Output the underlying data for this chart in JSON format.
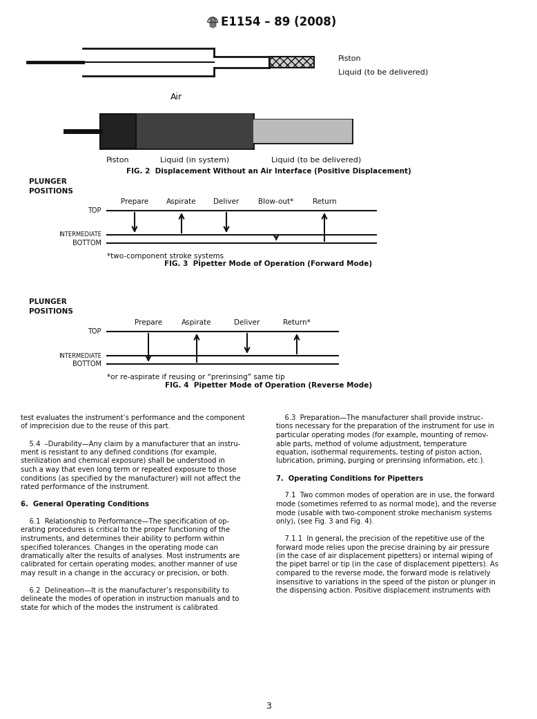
{
  "title": "E1154 – 89 (2008)",
  "bg_color": "#ffffff",
  "fig_width": 7.78,
  "fig_height": 10.41,
  "page_number": "3",
  "fig2_caption": "FIG. 2  Displacement Without an Air Interface (Positive Displacement)",
  "fig3_caption": "FIG. 3  Pipetter Mode of Operation (Forward Mode)",
  "fig4_caption": "FIG. 4  Pipetter Mode of Operation (Reverse Mode)",
  "fig3_labels": [
    "Prepare",
    "Aspirate",
    "Deliver",
    "Blow-out*",
    "Return"
  ],
  "fig3_note": "*two-component stroke systems",
  "fig4_labels": [
    "Prepare",
    "Aspirate",
    "Deliver",
    "Return*"
  ],
  "fig4_note": "*or re-aspirate if reusing or “prerinsing” same tip",
  "body_left_line1": "test evaluates the instrument’s performance and the component",
  "body_left_line2": "of imprecision due to the reuse of this part.",
  "body_left_line3": "",
  "body_left_line4": "    5.4  ",
  "body_left_line4b": "Durability",
  "body_left_line4c": "—Any claim by a manufacturer that an instru-",
  "body_left_line5": "ment is resistant to any defined conditions (for example,",
  "body_left_line6": "sterilization and chemical exposure) shall be understood in",
  "body_left_line7": "such a way that even long term or repeated exposure to those",
  "body_left_line8": "conditions (as specified by the manufacturer) will not affect the",
  "body_left_line9": "rated performance of the instrument.",
  "body_right_line1": "    6.3  ",
  "body_right_line1b": "Preparation",
  "body_right_line1c": "—The manufacturer shall provide instruc-",
  "body_right_line2": "tions necessary for the preparation of the instrument for use in",
  "body_right_line3": "particular operating modes (for example, mounting of remov-",
  "body_right_line4": "able parts, method of volume adjustment, temperature",
  "body_right_line5": "equation, isothermal requirements, testing of piston action,",
  "body_right_line6": "lubrication, priming, purging or prerinsing information, etc.).",
  "fig1_piston_label": "Piston",
  "fig1_liquid_label": "Liquid (to be delivered)",
  "fig1_air_label": "Air",
  "fig2_piston_label": "Piston",
  "fig2_liq_sys_label": "Liquid (in system)",
  "fig2_liq_del_label": "Liquid (to be delivered)",
  "sec6_heading": "6.  General Operating Conditions",
  "sec61_text": [
    "    6.1  Relationship to Performance—The specification of op-",
    "erating procedures is critical to the proper functioning of the",
    "instruments, and determines their ability to perform within",
    "specified tolerances. Changes in the operating mode can",
    "dramatically alter the results of analyses. Most instruments are",
    "calibrated for certain operating modes; another manner of use",
    "may result in a change in the accuracy or precision, or both."
  ],
  "sec62_text": [
    "    6.2  Delineation—It is the manufacturer’s responsibility to",
    "delineate the modes of operation in instruction manuals and to",
    "state for which of the modes the instrument is calibrated."
  ],
  "sec7_heading": "7.  Operating Conditions for Pipetters",
  "sec71_text": [
    "    7.1  Two common modes of operation are in use, the forward",
    "mode (sometimes referred to as normal mode), and the reverse",
    "mode (usable with two-component stroke mechanism systems",
    "only), (see Fig. 3 and Fig. 4)."
  ],
  "sec711_text": [
    "    7.1.1  In general, the precision of the repetitive use of the",
    "forward mode relies upon the precise draining by air pressure",
    "(in the case of air displacement pipetters) or internal wiping of",
    "the pipet barrel or tip (in the case of displacement pipetters). As",
    "compared to the reverse mode, the forward mode is relatively",
    "insensitive to variations in the speed of the piston or plunger in",
    "the dispensing action. Positive displacement instruments with"
  ]
}
